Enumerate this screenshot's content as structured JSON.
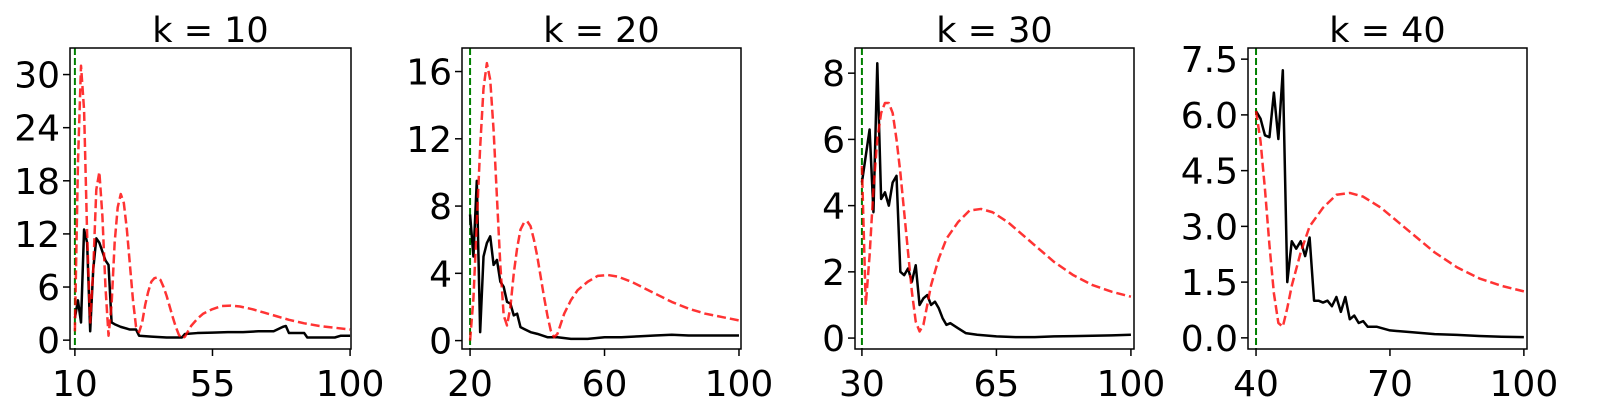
{
  "chart_data": [
    {
      "type": "line",
      "title": "k = 10",
      "xlim": [
        8.4,
        100.3
      ],
      "ylim": [
        -1,
        33
      ],
      "xticks": [
        10,
        55,
        100
      ],
      "yticks": [
        0,
        6,
        12,
        18,
        24,
        30
      ],
      "vline": 10,
      "vline_color": "#008000",
      "series": [
        {
          "color": "#000000",
          "style": "solid",
          "x": [
            10,
            11,
            12,
            13,
            14,
            15,
            16,
            17,
            18,
            19,
            20,
            21,
            22,
            23,
            25,
            28,
            30,
            31,
            35,
            40,
            45,
            46,
            50,
            55,
            60,
            65,
            70,
            75,
            78,
            79,
            80,
            85,
            86,
            90,
            95,
            97,
            100
          ],
          "values": [
            2.5,
            4.5,
            2,
            12.5,
            11,
            1,
            8,
            11.5,
            11,
            10,
            9,
            8.5,
            2,
            1.8,
            1.5,
            1.2,
            1.2,
            0.5,
            0.4,
            0.3,
            0.3,
            0.7,
            0.8,
            0.85,
            0.9,
            0.9,
            1.0,
            1.0,
            1.5,
            1.6,
            0.8,
            0.8,
            0.3,
            0.3,
            0.3,
            0.5,
            0.5
          ]
        },
        {
          "color": "#ff0000",
          "style": "dashed",
          "x": [
            10,
            11,
            12,
            13,
            14,
            15,
            16,
            17,
            18,
            19,
            20,
            21,
            22,
            23,
            24,
            25,
            26,
            27,
            28,
            29,
            30,
            31,
            32,
            33,
            34,
            35,
            36,
            37,
            38,
            39,
            40,
            41,
            42,
            43,
            44,
            45,
            46,
            47,
            48,
            50,
            52,
            55,
            58,
            61,
            64,
            68,
            72,
            76,
            80,
            85,
            90,
            95,
            100
          ],
          "values": [
            1,
            20,
            31,
            26,
            12,
            2,
            8,
            17,
            19,
            14,
            6,
            0.5,
            4,
            11,
            15,
            16.5,
            15.5,
            12.5,
            8.5,
            4.5,
            1.5,
            0.9,
            2,
            4,
            5.5,
            6.6,
            7,
            7.1,
            6.8,
            6,
            5,
            3.8,
            2.6,
            1.5,
            0.6,
            0.2,
            0.4,
            1,
            1.6,
            2.4,
            3,
            3.5,
            3.85,
            3.9,
            3.8,
            3.5,
            3.1,
            2.7,
            2.3,
            1.9,
            1.6,
            1.4,
            1.2
          ]
        }
      ]
    },
    {
      "type": "line",
      "title": "k = 20",
      "xlim": [
        17.6,
        100.6
      ],
      "ylim": [
        -0.5,
        17.4
      ],
      "xticks": [
        20,
        60,
        100
      ],
      "yticks": [
        0,
        4,
        8,
        12,
        16
      ],
      "vline": 20,
      "vline_color": "#008000",
      "series": [
        {
          "color": "#000000",
          "style": "solid",
          "x": [
            20,
            21,
            22,
            23,
            24,
            25,
            26,
            27,
            28,
            29,
            30,
            31,
            32,
            33,
            34,
            35,
            36,
            38,
            40,
            43,
            46,
            50,
            55,
            60,
            65,
            70,
            75,
            80,
            85,
            90,
            95,
            100
          ],
          "values": [
            7.5,
            5,
            9.5,
            0.5,
            5,
            5.8,
            6.2,
            4.5,
            4.8,
            3.5,
            3.2,
            2.3,
            2.2,
            1.5,
            1.6,
            0.8,
            0.7,
            0.5,
            0.4,
            0.2,
            0.2,
            0.1,
            0.1,
            0.2,
            0.2,
            0.25,
            0.3,
            0.35,
            0.3,
            0.3,
            0.3,
            0.3
          ]
        },
        {
          "color": "#ff0000",
          "style": "dashed",
          "x": [
            20,
            21,
            22,
            23,
            24,
            25,
            26,
            27,
            28,
            29,
            30,
            31,
            32,
            33,
            34,
            35,
            36,
            37,
            38,
            39,
            40,
            41,
            42,
            43,
            44,
            45,
            46,
            47,
            48,
            50,
            52,
            55,
            58,
            61,
            64,
            68,
            72,
            76,
            80,
            85,
            90,
            95,
            100
          ],
          "values": [
            0,
            2.5,
            7,
            11.5,
            15,
            16.5,
            15.5,
            12.5,
            8.5,
            4.5,
            1.5,
            0.9,
            2,
            4,
            5.5,
            6.6,
            7,
            7.1,
            6.8,
            6,
            5,
            3.8,
            2.6,
            1.5,
            0.6,
            0.2,
            0.4,
            1,
            1.6,
            2.4,
            3,
            3.5,
            3.85,
            3.9,
            3.8,
            3.5,
            3.1,
            2.7,
            2.3,
            1.9,
            1.6,
            1.4,
            1.2
          ]
        }
      ]
    },
    {
      "type": "line",
      "title": "k = 30",
      "xlim": [
        28.2,
        100.8
      ],
      "ylim": [
        -0.33,
        8.76
      ],
      "xticks": [
        30,
        65,
        100
      ],
      "yticks": [
        0,
        2,
        4,
        6,
        8
      ],
      "vline": 30,
      "vline_color": "#008000",
      "series": [
        {
          "color": "#000000",
          "style": "solid",
          "x": [
            30,
            31,
            32,
            33,
            34,
            35,
            36,
            37,
            38,
            39,
            40,
            41,
            42,
            43,
            44,
            45,
            46,
            47,
            48,
            49,
            50,
            51,
            52,
            53,
            55,
            57,
            60,
            65,
            70,
            75,
            80,
            85,
            90,
            95,
            100
          ],
          "values": [
            4.7,
            5.5,
            6.3,
            3.8,
            8.3,
            4.2,
            4.4,
            4.0,
            4.7,
            4.9,
            2.0,
            1.9,
            2.1,
            1.7,
            2.2,
            1.0,
            1.2,
            1.3,
            1.0,
            1.1,
            0.9,
            0.6,
            0.4,
            0.45,
            0.3,
            0.15,
            0.1,
            0.05,
            0.03,
            0.03,
            0.05,
            0.06,
            0.07,
            0.08,
            0.1
          ]
        },
        {
          "color": "#ff0000",
          "style": "dashed",
          "x": [
            30,
            31,
            32,
            33,
            34,
            35,
            36,
            37,
            38,
            39,
            40,
            41,
            42,
            43,
            44,
            45,
            46,
            47,
            48,
            50,
            52,
            55,
            58,
            61,
            64,
            68,
            72,
            76,
            80,
            85,
            90,
            95,
            100
          ],
          "values": [
            5.2,
            1.0,
            2.5,
            4.5,
            6.0,
            6.8,
            7.1,
            7.1,
            6.8,
            6.0,
            5.0,
            3.8,
            2.6,
            1.4,
            0.5,
            0.2,
            0.4,
            1.0,
            1.6,
            2.4,
            3.0,
            3.5,
            3.85,
            3.9,
            3.8,
            3.5,
            3.1,
            2.7,
            2.3,
            1.9,
            1.6,
            1.4,
            1.25
          ]
        }
      ]
    },
    {
      "type": "line",
      "title": "k = 40",
      "xlim": [
        38.2,
        100.7
      ],
      "ylim": [
        -0.3,
        7.8
      ],
      "xticks": [
        40,
        70,
        100
      ],
      "yticks": [
        {
          "value": 0,
          "label": "0.0"
        },
        1.5,
        {
          "value": 3,
          "label": "3.0"
        },
        4.5,
        {
          "value": 6,
          "label": "6.0"
        },
        7.5
      ],
      "vline": 40,
      "vline_color": "#008000",
      "series": [
        {
          "color": "#000000",
          "style": "solid",
          "x": [
            40,
            41,
            42,
            43,
            44,
            45,
            46,
            47,
            48,
            49,
            50,
            51,
            52,
            53,
            54,
            55,
            56,
            57,
            58,
            59,
            60,
            61,
            62,
            63,
            64,
            65,
            67,
            70,
            75,
            80,
            85,
            90,
            95,
            100
          ],
          "values": [
            6.1,
            5.9,
            5.45,
            5.4,
            6.6,
            5.35,
            7.2,
            1.5,
            2.6,
            2.4,
            2.6,
            2.2,
            2.7,
            1.0,
            1.0,
            0.95,
            1.0,
            0.85,
            1.1,
            0.7,
            1.1,
            0.5,
            0.6,
            0.4,
            0.45,
            0.3,
            0.3,
            0.2,
            0.15,
            0.1,
            0.08,
            0.05,
            0.03,
            0.02
          ]
        },
        {
          "color": "#ff0000",
          "style": "dashed",
          "x": [
            40,
            41,
            42,
            43,
            44,
            45,
            46,
            47,
            48,
            50,
            52,
            55,
            58,
            61,
            64,
            68,
            72,
            76,
            80,
            85,
            90,
            95,
            100
          ],
          "values": [
            6.1,
            5.3,
            4.0,
            2.5,
            1.2,
            0.4,
            0.3,
            0.8,
            1.4,
            2.3,
            3.0,
            3.5,
            3.85,
            3.9,
            3.8,
            3.5,
            3.1,
            2.7,
            2.3,
            1.9,
            1.6,
            1.4,
            1.25
          ]
        }
      ]
    }
  ]
}
